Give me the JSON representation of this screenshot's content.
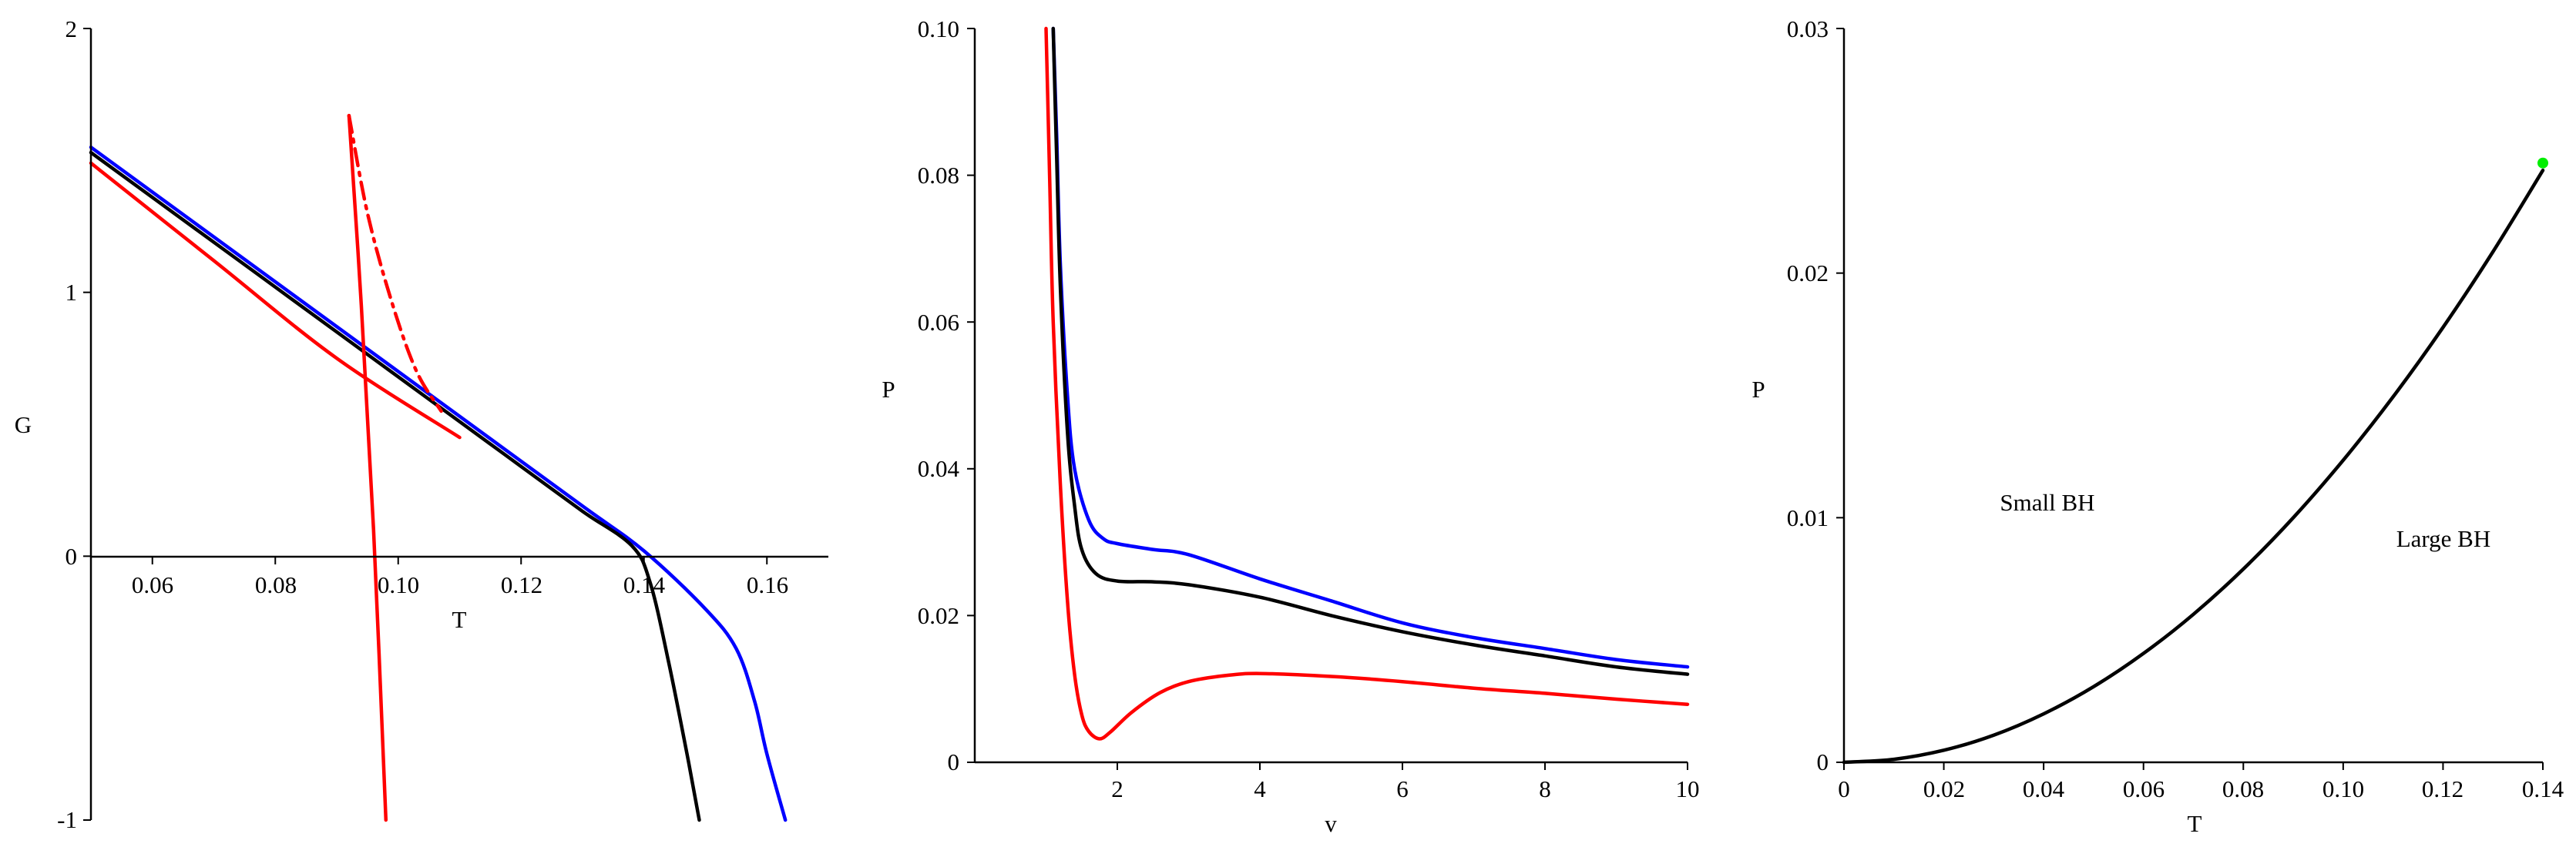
{
  "chart_data": [
    {
      "type": "line",
      "xlabel": "T",
      "ylabel": "G",
      "xlim": [
        0.05,
        0.17
      ],
      "ylim": [
        -1,
        2
      ],
      "xticks": [
        "0.06",
        "0.08",
        "0.10",
        "0.12",
        "0.14",
        "0.16"
      ],
      "yticks": [
        "-1",
        "0",
        "1",
        "2"
      ],
      "grid": false,
      "colors": {
        "blue": "#0000ff",
        "black": "#000000",
        "red": "#ff0000"
      },
      "series": [
        {
          "color": "blue",
          "style": "solid",
          "x": [
            0.05,
            0.07,
            0.09,
            0.11,
            0.13,
            0.14,
            0.15,
            0.155,
            0.158,
            0.16,
            0.163
          ],
          "y": [
            1.55,
            1.21,
            0.87,
            0.53,
            0.19,
            0.02,
            -0.2,
            -0.35,
            -0.55,
            -0.75,
            -1.0
          ]
        },
        {
          "color": "black",
          "style": "solid",
          "x": [
            0.05,
            0.07,
            0.09,
            0.11,
            0.12,
            0.13,
            0.138,
            0.141,
            0.144,
            0.147,
            0.149
          ],
          "y": [
            1.53,
            1.19,
            0.85,
            0.51,
            0.34,
            0.17,
            0.04,
            -0.1,
            -0.4,
            -0.75,
            -1.0
          ]
        },
        {
          "color": "red",
          "style": "solid",
          "x": [
            0.05,
            0.07,
            0.09,
            0.11
          ],
          "y": [
            1.49,
            1.12,
            0.75,
            0.45
          ]
        },
        {
          "color": "red",
          "style": "solid",
          "x": [
            0.092,
            0.094,
            0.096,
            0.098
          ],
          "y": [
            1.67,
            0.95,
            0.1,
            -1.0
          ]
        },
        {
          "color": "red",
          "style": "dashdot",
          "x": [
            0.092,
            0.095,
            0.099,
            0.103,
            0.107
          ],
          "y": [
            1.67,
            1.3,
            0.96,
            0.7,
            0.55
          ]
        }
      ]
    },
    {
      "type": "line",
      "xlabel": "v",
      "ylabel": "P",
      "xlim": [
        0,
        10
      ],
      "ylim": [
        0,
        0.1
      ],
      "xticks": [
        "2",
        "4",
        "6",
        "8",
        "10"
      ],
      "yticks": [
        "0",
        "0.02",
        "0.04",
        "0.06",
        "0.08",
        "0.10"
      ],
      "grid": false,
      "colors": {
        "blue": "#0000ff",
        "black": "#000000",
        "red": "#ff0000"
      },
      "series": [
        {
          "color": "blue",
          "x": [
            1.1,
            1.15,
            1.2,
            1.3,
            1.4,
            1.6,
            1.8,
            2.0,
            2.5,
            3.0,
            4.0,
            5.0,
            6.0,
            7.0,
            8.0,
            9.0,
            10.0
          ],
          "y": [
            0.1,
            0.085,
            0.068,
            0.05,
            0.04,
            0.033,
            0.0305,
            0.0298,
            0.029,
            0.0283,
            0.025,
            0.022,
            0.019,
            0.017,
            0.0155,
            0.014,
            0.013
          ]
        },
        {
          "color": "black",
          "x": [
            1.1,
            1.15,
            1.2,
            1.3,
            1.4,
            1.5,
            1.7,
            2.0,
            2.5,
            3.0,
            4.0,
            5.0,
            6.0,
            7.0,
            8.0,
            9.0,
            10.0
          ],
          "y": [
            0.1,
            0.082,
            0.065,
            0.045,
            0.035,
            0.029,
            0.0257,
            0.0247,
            0.0246,
            0.0242,
            0.0225,
            0.02,
            0.0178,
            0.016,
            0.0145,
            0.013,
            0.012
          ]
        },
        {
          "color": "red",
          "x": [
            1.0,
            1.05,
            1.1,
            1.2,
            1.3,
            1.4,
            1.5,
            1.6,
            1.75,
            1.9,
            2.2,
            2.6,
            3.0,
            3.5,
            4.0,
            5.0,
            6.0,
            7.0,
            8.0,
            9.0,
            10.0
          ],
          "y": [
            0.1,
            0.08,
            0.06,
            0.038,
            0.022,
            0.012,
            0.0065,
            0.0042,
            0.0032,
            0.0041,
            0.0068,
            0.0095,
            0.011,
            0.0118,
            0.0121,
            0.0117,
            0.011,
            0.0101,
            0.0094,
            0.0086,
            0.0079
          ]
        }
      ]
    },
    {
      "type": "line",
      "xlabel": "T",
      "ylabel": "P",
      "xlim": [
        0,
        0.14
      ],
      "ylim": [
        0,
        0.03
      ],
      "xticks": [
        "0",
        "0.02",
        "0.04",
        "0.06",
        "0.08",
        "0.10",
        "0.12",
        "0.14"
      ],
      "yticks": [
        "0",
        "0.01",
        "0.02",
        "0.03"
      ],
      "grid": false,
      "colors": {
        "black": "#000000",
        "green": "#00ee00"
      },
      "annotations": [
        "Small BH",
        "Large BH"
      ],
      "series": [
        {
          "color": "black",
          "x": [
            0,
            0.01,
            0.02,
            0.03,
            0.04,
            0.05,
            0.06,
            0.07,
            0.08,
            0.09,
            0.1,
            0.11,
            0.12,
            0.13,
            0.14
          ],
          "y": [
            0,
            0.000124,
            0.000494,
            0.00111,
            0.00198,
            0.00309,
            0.00445,
            0.00605,
            0.0079,
            0.01,
            0.01235,
            0.01494,
            0.01778,
            0.02087,
            0.0242
          ]
        }
      ],
      "critical_point": {
        "x": 0.14,
        "y": 0.0245,
        "color": "green"
      }
    }
  ]
}
